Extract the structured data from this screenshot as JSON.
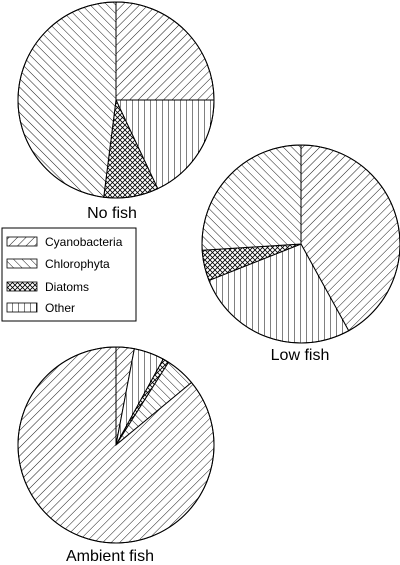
{
  "chart_data": [
    {
      "type": "pie",
      "title": "No fish",
      "slices": [
        {
          "label": "Cyanobacteria",
          "value": 25
        },
        {
          "label": "Other",
          "value": 18
        },
        {
          "label": "Diatoms",
          "value": 9
        },
        {
          "label": "Chlorophyta",
          "value": 48
        }
      ]
    },
    {
      "type": "pie",
      "title": "Low fish",
      "slices": [
        {
          "label": "Cyanobacteria",
          "value": 42
        },
        {
          "label": "Other",
          "value": 27
        },
        {
          "label": "Diatoms",
          "value": 5
        },
        {
          "label": "Chlorophyta",
          "value": 26
        }
      ]
    },
    {
      "type": "pie",
      "title": "Ambient fish",
      "slices": [
        {
          "label": "Cyanobacteria",
          "value": 3
        },
        {
          "label": "Other",
          "value": 5
        },
        {
          "label": "Diatoms",
          "value": 1
        },
        {
          "label": "Chlorophyta",
          "value": 5
        },
        {
          "label": "Cyanobacteria",
          "value": 86
        }
      ]
    }
  ],
  "legend": {
    "items": [
      {
        "label": "Cyanobacteria",
        "pattern": "cyano"
      },
      {
        "label": "Chlorophyta",
        "pattern": "chloro"
      },
      {
        "label": "Diatoms",
        "pattern": "diatom"
      },
      {
        "label": "Other",
        "pattern": "other"
      }
    ]
  }
}
